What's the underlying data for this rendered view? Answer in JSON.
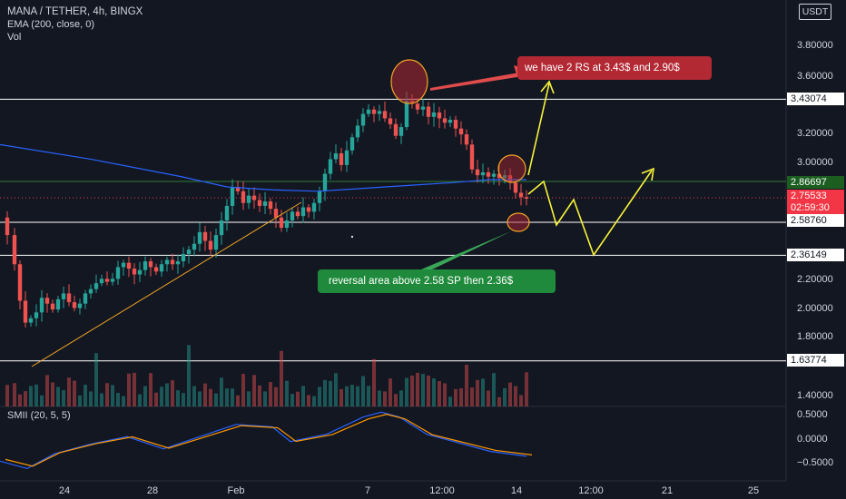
{
  "header": {
    "title": "MANA / TETHER, 4h, BINGX",
    "indicator": "EMA (200, close, 0)",
    "volume": "Vol",
    "currency": "USDT"
  },
  "oscillator": {
    "label": "SMII (20, 5, 5)"
  },
  "price_axis": [
    "3.80000",
    "3.60000",
    "3.20000",
    "3.00000",
    "2.20000",
    "2.00000",
    "1.80000",
    "1.40000",
    "0.5000",
    "0.0000",
    "−0.5000"
  ],
  "level_labels": {
    "r1": "3.43074",
    "r2": "2.86697",
    "last": "2.75533",
    "countdown": "02:59:30",
    "s1": "2.58760",
    "s2": "2.36149",
    "s3": "1.63774"
  },
  "time_axis": [
    "24",
    "28",
    "Feb",
    "7",
    "12:00",
    "14",
    "12:00",
    "21",
    "25"
  ],
  "annotations": {
    "resistance_note": "we have 2 RS at 3.43$ and 2.90$",
    "support_note": "reversal area above 2.58 SP then 2.36$"
  },
  "colors": {
    "up": "#26a69a",
    "down": "#ef5350",
    "ema": "#2962ff",
    "arrow": "#f7f33a",
    "trendline": "#f5a623"
  },
  "chart_data": {
    "type": "candlestick",
    "title": "MANA / TETHER, 4h, BINGX",
    "ylim": [
      1.35,
      4.0
    ],
    "x_ticks": [
      "24",
      "28",
      "Feb",
      "7",
      "12:00",
      "14",
      "12:00",
      "21",
      "25"
    ],
    "horizontal_levels": [
      3.43074,
      2.86697,
      2.5876,
      2.36149,
      1.63774
    ],
    "last_price": 2.75533,
    "price_path": [
      [
        0,
        2.62
      ],
      [
        8,
        2.5
      ],
      [
        16,
        2.3
      ],
      [
        22,
        2.05
      ],
      [
        28,
        1.9
      ],
      [
        34,
        1.93
      ],
      [
        40,
        1.97
      ],
      [
        46,
        2.07
      ],
      [
        52,
        2.03
      ],
      [
        58,
        1.99
      ],
      [
        64,
        2.06
      ],
      [
        70,
        2.1
      ],
      [
        76,
        2.04
      ],
      [
        82,
        2.0
      ],
      [
        88,
        2.03
      ],
      [
        94,
        2.1
      ],
      [
        100,
        2.13
      ],
      [
        106,
        2.17
      ],
      [
        112,
        2.2
      ],
      [
        118,
        2.18
      ],
      [
        124,
        2.2
      ],
      [
        130,
        2.28
      ],
      [
        136,
        2.31
      ],
      [
        142,
        2.27
      ],
      [
        148,
        2.23
      ],
      [
        154,
        2.26
      ],
      [
        160,
        2.32
      ],
      [
        166,
        2.28
      ],
      [
        172,
        2.25
      ],
      [
        178,
        2.3
      ],
      [
        184,
        2.33
      ],
      [
        190,
        2.3
      ],
      [
        196,
        2.32
      ],
      [
        202,
        2.37
      ],
      [
        208,
        2.4
      ],
      [
        214,
        2.44
      ],
      [
        220,
        2.52
      ],
      [
        226,
        2.46
      ],
      [
        232,
        2.4
      ],
      [
        238,
        2.5
      ],
      [
        244,
        2.6
      ],
      [
        250,
        2.7
      ],
      [
        256,
        2.83
      ],
      [
        262,
        2.8
      ],
      [
        268,
        2.72
      ],
      [
        274,
        2.77
      ],
      [
        280,
        2.74
      ],
      [
        286,
        2.7
      ],
      [
        292,
        2.73
      ],
      [
        298,
        2.68
      ],
      [
        304,
        2.62
      ],
      [
        310,
        2.55
      ],
      [
        316,
        2.6
      ],
      [
        322,
        2.66
      ],
      [
        328,
        2.63
      ],
      [
        334,
        2.69
      ],
      [
        340,
        2.66
      ],
      [
        346,
        2.72
      ],
      [
        352,
        2.8
      ],
      [
        358,
        2.92
      ],
      [
        364,
        3.02
      ],
      [
        370,
        3.06
      ],
      [
        376,
        2.98
      ],
      [
        382,
        3.08
      ],
      [
        388,
        3.17
      ],
      [
        394,
        3.25
      ],
      [
        400,
        3.33
      ],
      [
        406,
        3.36
      ],
      [
        412,
        3.33
      ],
      [
        418,
        3.35
      ],
      [
        424,
        3.3
      ],
      [
        430,
        3.26
      ],
      [
        436,
        3.18
      ],
      [
        442,
        3.24
      ],
      [
        448,
        3.42
      ],
      [
        454,
        3.4
      ],
      [
        460,
        3.36
      ],
      [
        466,
        3.38
      ],
      [
        472,
        3.31
      ],
      [
        478,
        3.34
      ],
      [
        484,
        3.3
      ],
      [
        490,
        3.27
      ],
      [
        496,
        3.29
      ],
      [
        502,
        3.23
      ],
      [
        508,
        3.19
      ],
      [
        514,
        3.12
      ],
      [
        520,
        2.95
      ],
      [
        526,
        2.91
      ],
      [
        532,
        2.93
      ],
      [
        538,
        2.9
      ],
      [
        544,
        2.92
      ],
      [
        550,
        2.89
      ],
      [
        556,
        2.91
      ],
      [
        562,
        2.86
      ],
      [
        568,
        2.79
      ],
      [
        574,
        2.76
      ],
      [
        580,
        2.75
      ]
    ],
    "ema_path": [
      [
        0,
        3.12
      ],
      [
        100,
        3.02
      ],
      [
        200,
        2.9
      ],
      [
        250,
        2.83
      ],
      [
        300,
        2.81
      ],
      [
        350,
        2.8
      ],
      [
        400,
        2.82
      ],
      [
        450,
        2.84
      ],
      [
        500,
        2.86
      ],
      [
        540,
        2.88
      ],
      [
        580,
        2.88
      ]
    ],
    "smii_path": [
      [
        0,
        -0.45
      ],
      [
        30,
        -0.6
      ],
      [
        60,
        -0.3
      ],
      [
        100,
        -0.1
      ],
      [
        140,
        0.05
      ],
      [
        180,
        -0.2
      ],
      [
        220,
        0.05
      ],
      [
        260,
        0.3
      ],
      [
        300,
        0.25
      ],
      [
        320,
        -0.05
      ],
      [
        360,
        0.1
      ],
      [
        400,
        0.45
      ],
      [
        420,
        0.55
      ],
      [
        440,
        0.45
      ],
      [
        470,
        0.1
      ],
      [
        500,
        -0.05
      ],
      [
        540,
        -0.25
      ],
      [
        580,
        -0.35
      ]
    ]
  }
}
